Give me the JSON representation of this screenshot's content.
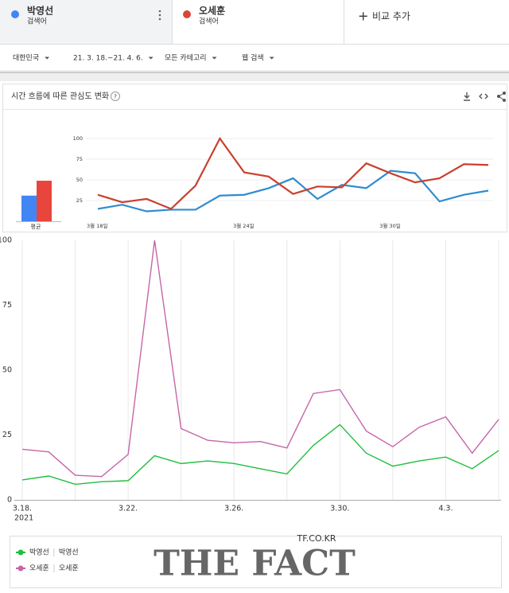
{
  "header": {
    "terms": [
      {
        "name": "박영선",
        "sub": "검색어",
        "color": "#4285f4"
      },
      {
        "name": "오세훈",
        "sub": "검색어",
        "color": "#db4437"
      }
    ],
    "add": "비교 추가"
  },
  "filters": [
    "대한민국",
    "21. 3. 18.~21. 4. 6.",
    "모든 카테고리",
    "웹 검색"
  ],
  "panel_title": "시간 흐름에 따른 관심도 변화",
  "chart_data": [
    {
      "type": "bar",
      "categories": [
        "평균"
      ],
      "ylim": [
        0,
        100
      ],
      "series": [
        {
          "color": "#4285f4",
          "values": [
            31
          ]
        },
        {
          "color": "#e8453c",
          "values": [
            49
          ]
        }
      ]
    },
    {
      "type": "line",
      "ylim": [
        0,
        100
      ],
      "yticks": [
        25,
        50,
        75,
        100
      ],
      "grid": true,
      "categories": [
        "3월 18일",
        null,
        null,
        null,
        null,
        null,
        "3월 24일",
        null,
        null,
        null,
        null,
        null,
        "3월 30일",
        null,
        null,
        null,
        null
      ],
      "series": [
        {
          "color": "#2f8ccf",
          "values": [
            15,
            20,
            12,
            14,
            14,
            31,
            32,
            40,
            52,
            27,
            44,
            40,
            61,
            58,
            24,
            32,
            37
          ]
        },
        {
          "color": "#c8412f",
          "values": [
            32,
            23,
            27,
            15,
            43,
            100,
            59,
            54,
            33,
            42,
            41,
            70,
            58,
            47,
            52,
            69,
            68
          ]
        }
      ]
    },
    {
      "type": "line",
      "ylim": [
        0,
        100
      ],
      "yticks": [
        0,
        25,
        50,
        75,
        100
      ],
      "year": "2021",
      "categories": [
        "3.18.",
        null,
        null,
        null,
        "3.22.",
        null,
        null,
        null,
        "3.26.",
        null,
        null,
        null,
        "3.30.",
        null,
        null,
        null,
        "4.3.",
        null,
        null
      ],
      "series": [
        {
          "name": "박영선",
          "detail": "박영선",
          "color": "#1fbf3f",
          "values": [
            7.7,
            9.2,
            6,
            7,
            7.4,
            17,
            14,
            15,
            14,
            12,
            10,
            21,
            29,
            18,
            13,
            15,
            16.5,
            12,
            19
          ]
        },
        {
          "name": "오세훈",
          "detail": "오세훈",
          "color": "#c665a8",
          "values": [
            19.5,
            18.5,
            9.5,
            9,
            17.5,
            100,
            27.5,
            23,
            22,
            22.5,
            20,
            41,
            42.5,
            26.5,
            20.5,
            28,
            32,
            18,
            31
          ]
        }
      ]
    }
  ],
  "watermark": {
    "site": "TF.CO.KR",
    "brand": "THE FACT"
  }
}
